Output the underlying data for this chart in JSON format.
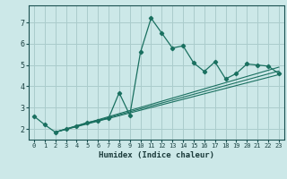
{
  "title": "",
  "xlabel": "Humidex (Indice chaleur)",
  "ylabel": "",
  "background_color": "#cce8e8",
  "grid_color": "#aacccc",
  "line_color": "#1a7060",
  "xlim": [
    -0.5,
    23.5
  ],
  "ylim": [
    1.5,
    7.8
  ],
  "xticks": [
    0,
    1,
    2,
    3,
    4,
    5,
    6,
    7,
    8,
    9,
    10,
    11,
    12,
    13,
    14,
    15,
    16,
    17,
    18,
    19,
    20,
    21,
    22,
    23
  ],
  "yticks": [
    2,
    3,
    4,
    5,
    6,
    7
  ],
  "main_series_x": [
    0,
    1,
    2,
    3,
    4,
    5,
    6,
    7,
    8,
    9,
    10,
    11,
    12,
    13,
    14,
    15,
    16,
    17,
    18,
    19,
    20,
    21,
    22,
    23
  ],
  "main_series_y": [
    2.6,
    2.2,
    1.85,
    2.0,
    2.15,
    2.3,
    2.4,
    2.5,
    3.7,
    2.65,
    5.6,
    7.2,
    6.5,
    5.8,
    5.9,
    5.1,
    4.7,
    5.15,
    4.35,
    4.6,
    5.05,
    5.0,
    4.95,
    4.6
  ],
  "line2_x": [
    2,
    23
  ],
  "line2_y": [
    1.85,
    4.55
  ],
  "line3_x": [
    2,
    23
  ],
  "line3_y": [
    1.85,
    4.72
  ],
  "line4_x": [
    2,
    23
  ],
  "line4_y": [
    1.85,
    4.9
  ]
}
